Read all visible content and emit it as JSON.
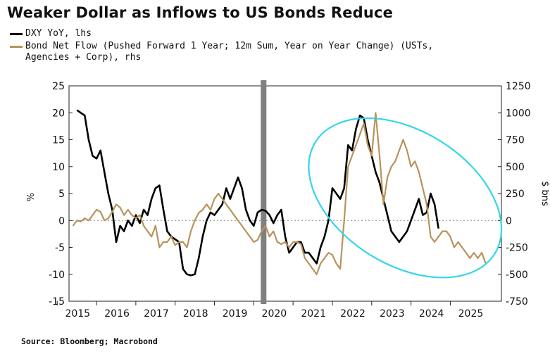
{
  "chart_data": {
    "type": "line",
    "title": "Weaker Dollar as Inflows to US Bonds Reduce",
    "source": "Source: Bloomberg; Macrobond",
    "left_axis": {
      "label": "%",
      "ticks": [
        25,
        20,
        15,
        10,
        5,
        0,
        -5,
        -10,
        -15
      ],
      "range": [
        -15,
        25
      ]
    },
    "right_axis": {
      "label": "$ bns",
      "ticks": [
        1250,
        1000,
        750,
        500,
        250,
        0,
        -250,
        -500,
        -750
      ],
      "range": [
        -750,
        1250
      ]
    },
    "x_ticks": [
      "2015",
      "2016",
      "2017",
      "2018",
      "2019",
      "2020",
      "2021",
      "2022",
      "2023",
      "2024",
      "2025"
    ],
    "x_range": [
      2014.8,
      2025.8
    ],
    "series": [
      {
        "name": "DXY YoY, lhs",
        "axis": "left",
        "color": "#000000",
        "x": [
          2015.0,
          2015.1,
          2015.2,
          2015.3,
          2015.4,
          2015.5,
          2015.6,
          2015.7,
          2015.8,
          2015.9,
          2016.0,
          2016.1,
          2016.2,
          2016.3,
          2016.4,
          2016.5,
          2016.6,
          2016.7,
          2016.8,
          2016.9,
          2017.0,
          2017.1,
          2017.2,
          2017.3,
          2017.4,
          2017.5,
          2017.6,
          2017.7,
          2017.8,
          2017.9,
          2018.0,
          2018.1,
          2018.2,
          2018.3,
          2018.4,
          2018.5,
          2018.6,
          2018.7,
          2018.8,
          2018.9,
          2019.0,
          2019.1,
          2019.2,
          2019.3,
          2019.4,
          2019.5,
          2019.6,
          2019.7,
          2019.8,
          2019.9,
          2020.0,
          2020.1,
          2020.2,
          2020.3,
          2020.4,
          2020.5,
          2020.6,
          2020.7,
          2020.8,
          2020.9,
          2021.0,
          2021.1,
          2021.2,
          2021.3,
          2021.4,
          2021.5,
          2021.6,
          2021.7,
          2021.8,
          2021.9,
          2022.0,
          2022.1,
          2022.2,
          2022.3,
          2022.4,
          2022.5,
          2022.6,
          2022.7,
          2022.8,
          2022.9,
          2023.0,
          2023.1,
          2023.2,
          2023.3,
          2023.4,
          2023.5,
          2023.6,
          2023.7,
          2023.8,
          2023.9,
          2024.0,
          2024.1,
          2024.2
        ],
        "values": [
          20.5,
          20,
          19.5,
          15,
          12,
          11.5,
          13,
          9,
          5,
          2,
          -4,
          -1,
          -2,
          0,
          -1,
          1,
          -0.5,
          2,
          1,
          4,
          6,
          6.5,
          2,
          -2,
          -3,
          -3.5,
          -4,
          -9,
          -10,
          -10.2,
          -10,
          -7,
          -3,
          0,
          1.5,
          1,
          2,
          3,
          6,
          4,
          6,
          8,
          6,
          2,
          0,
          -1,
          1.5,
          2,
          1.8,
          1,
          -0.5,
          1,
          2,
          -3,
          -6,
          -5,
          -4,
          -4,
          -6,
          -6,
          -7,
          -8,
          -5,
          -3,
          0,
          6,
          5,
          4,
          6,
          14,
          13,
          17,
          19.5,
          19,
          15,
          12,
          9,
          7,
          4,
          1,
          -2,
          -3,
          -4,
          -3,
          -2,
          0,
          2,
          4,
          1,
          1.5,
          5,
          3,
          -1.5
        ]
      },
      {
        "name": "Bond Net Flow (Pushed Forward 1 Year; 12m Sum, Year on Year Change) (USTs, Agencies + Corp), rhs",
        "axis": "right",
        "color": "#b8935a",
        "x": [
          2014.9,
          2015.0,
          2015.1,
          2015.2,
          2015.3,
          2015.4,
          2015.5,
          2015.6,
          2015.7,
          2015.8,
          2015.9,
          2016.0,
          2016.1,
          2016.2,
          2016.3,
          2016.4,
          2016.5,
          2016.6,
          2016.7,
          2016.8,
          2016.9,
          2017.0,
          2017.1,
          2017.2,
          2017.3,
          2017.4,
          2017.5,
          2017.6,
          2017.7,
          2017.8,
          2017.9,
          2018.0,
          2018.1,
          2018.2,
          2018.3,
          2018.4,
          2018.5,
          2018.6,
          2018.7,
          2018.8,
          2018.9,
          2019.0,
          2019.1,
          2019.2,
          2019.3,
          2019.4,
          2019.5,
          2019.6,
          2019.7,
          2019.8,
          2019.9,
          2020.0,
          2020.1,
          2020.2,
          2020.3,
          2020.4,
          2020.5,
          2020.6,
          2020.7,
          2020.8,
          2020.9,
          2021.0,
          2021.1,
          2021.2,
          2021.3,
          2021.4,
          2021.5,
          2021.6,
          2021.7,
          2021.8,
          2021.9,
          2022.0,
          2022.1,
          2022.2,
          2022.3,
          2022.4,
          2022.5,
          2022.6,
          2022.7,
          2022.8,
          2022.9,
          2023.0,
          2023.1,
          2023.2,
          2023.3,
          2023.4,
          2023.5,
          2023.6,
          2023.7,
          2023.8,
          2023.9,
          2024.0,
          2024.1,
          2024.2,
          2024.3,
          2024.4,
          2024.5,
          2024.6,
          2024.7,
          2024.8,
          2024.9,
          2025.0,
          2025.1,
          2025.2,
          2025.3,
          2025.4
        ],
        "values": [
          -50,
          0,
          -10,
          20,
          0,
          50,
          100,
          80,
          0,
          20,
          80,
          150,
          120,
          50,
          100,
          50,
          20,
          50,
          -50,
          -100,
          -150,
          -50,
          -250,
          -200,
          -200,
          -150,
          -230,
          -200,
          -200,
          -250,
          -100,
          0,
          70,
          100,
          150,
          100,
          200,
          250,
          200,
          150,
          100,
          50,
          0,
          -50,
          -100,
          -150,
          -200,
          -180,
          -100,
          -50,
          -150,
          -100,
          -200,
          -220,
          -200,
          -250,
          -200,
          -200,
          -220,
          -350,
          -400,
          -450,
          -500,
          -400,
          -350,
          -300,
          -320,
          -400,
          -450,
          0,
          500,
          600,
          700,
          800,
          900,
          700,
          600,
          1000,
          600,
          150,
          400,
          500,
          550,
          650,
          750,
          650,
          500,
          550,
          450,
          300,
          150,
          -150,
          -200,
          -150,
          -100,
          -100,
          -150,
          -250,
          -200,
          -250,
          -300,
          -350,
          -300,
          -350,
          -300,
          -400
        ]
      }
    ],
    "annotations": [
      {
        "type": "vertical_band",
        "x": 2019.75,
        "color": "#808080"
      },
      {
        "type": "ellipse",
        "color": "#33d6e8"
      }
    ]
  }
}
